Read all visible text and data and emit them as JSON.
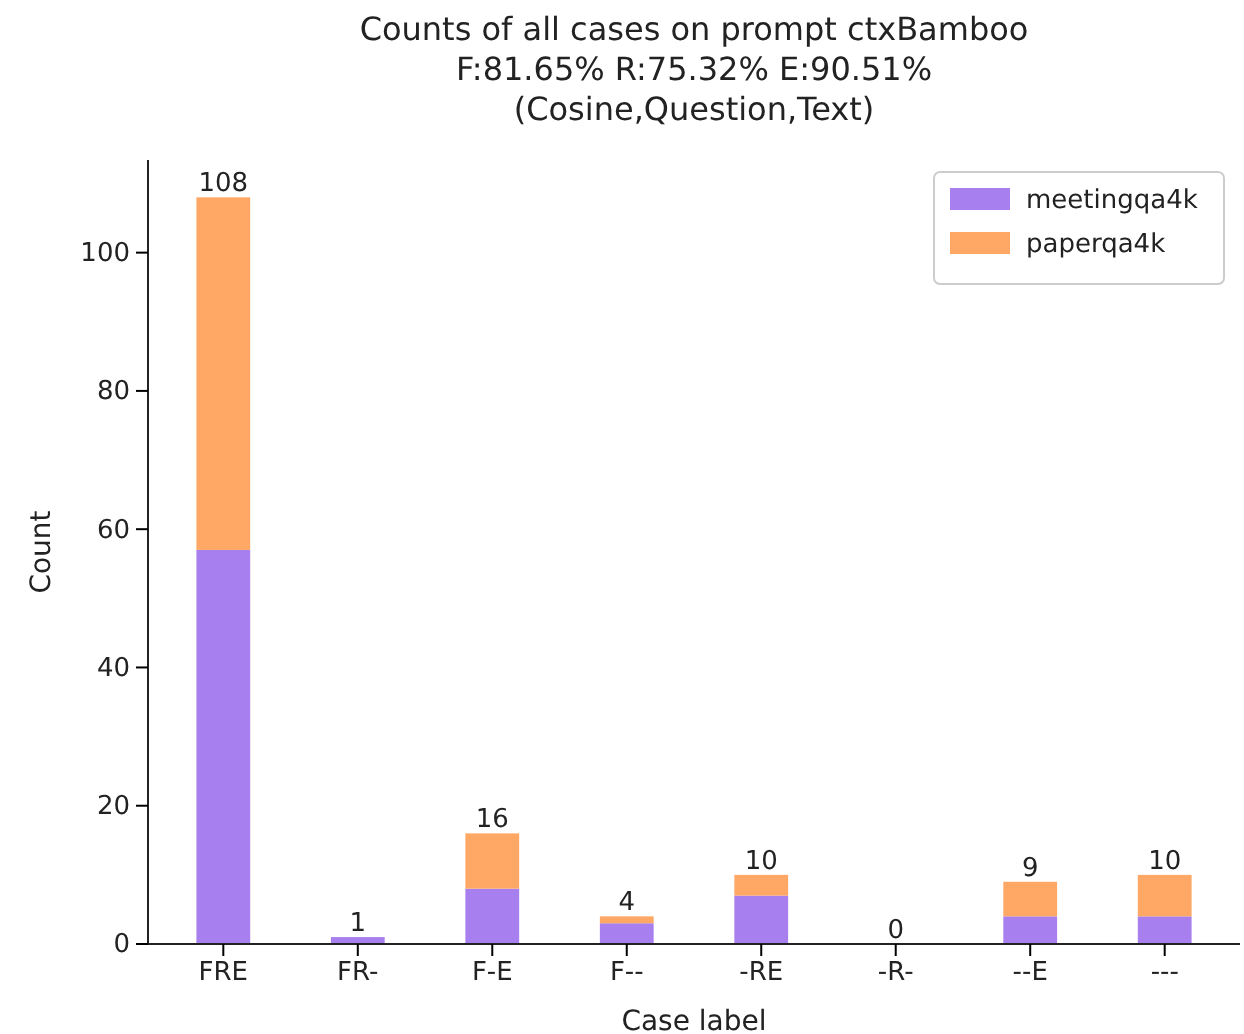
{
  "chart_data": {
    "type": "bar",
    "title": "Counts of all cases on prompt ctxBamboo\nF:81.65% R:75.32% E:90.51%\n(Cosine,Question,Text)",
    "xlabel": "Case label",
    "ylabel": "Count",
    "categories": [
      "FRE",
      "FR-",
      "F-E",
      "F--",
      "-RE",
      "-R-",
      "--E",
      "---"
    ],
    "stacked": true,
    "series": [
      {
        "name": "meetingqa4k",
        "color": "#a77fee",
        "values": [
          57,
          1,
          8,
          3,
          7,
          0,
          4,
          4
        ]
      },
      {
        "name": "paperqa4k",
        "color": "#ffa764",
        "values": [
          51,
          0,
          8,
          1,
          3,
          0,
          5,
          6
        ]
      }
    ],
    "totals": [
      "108",
      "1",
      "16",
      "4",
      "10",
      "0",
      "9",
      "10"
    ],
    "ylim": [
      0,
      113.4
    ],
    "yticks": [
      0,
      20,
      40,
      60,
      80,
      100
    ],
    "grid": false,
    "legend": "top right"
  }
}
